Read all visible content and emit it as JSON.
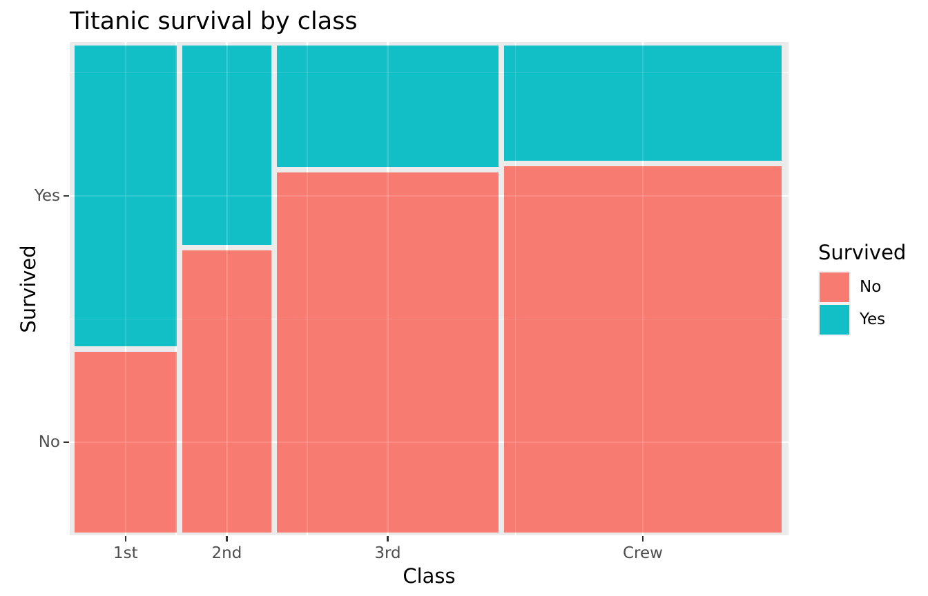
{
  "title": "Titanic survival by class",
  "chart_data": {
    "type": "mosaic",
    "title": "Titanic survival by class",
    "xlabel": "Class",
    "ylabel": "Survived",
    "legend_title": "Survived",
    "legend_position": "right",
    "x_categories": [
      "1st",
      "2nd",
      "3rd",
      "Crew"
    ],
    "y_categories": [
      "No",
      "Yes"
    ],
    "y_tick_labels_top_to_bottom": [
      "Yes",
      "No"
    ],
    "counts": [
      {
        "class": "1st",
        "No": 122,
        "Yes": 203
      },
      {
        "class": "2nd",
        "No": 167,
        "Yes": 118
      },
      {
        "class": "3rd",
        "No": 528,
        "Yes": 178
      },
      {
        "class": "Crew",
        "No": 673,
        "Yes": 212
      }
    ],
    "column_width_share": [
      0.148,
      0.129,
      0.321,
      0.402
    ],
    "yes_fraction_by_class": [
      0.625,
      0.414,
      0.252,
      0.24
    ],
    "colors": {
      "No": "#F87B72",
      "Yes": "#12BFC7"
    },
    "panel_background": "#EBEBEB",
    "grid_color": "#FFFFFF",
    "legend_key_background": "#F2F2F2",
    "tick_label_color": "#4D4D4D",
    "tick_mark_color": "#333333",
    "grid": "on"
  }
}
